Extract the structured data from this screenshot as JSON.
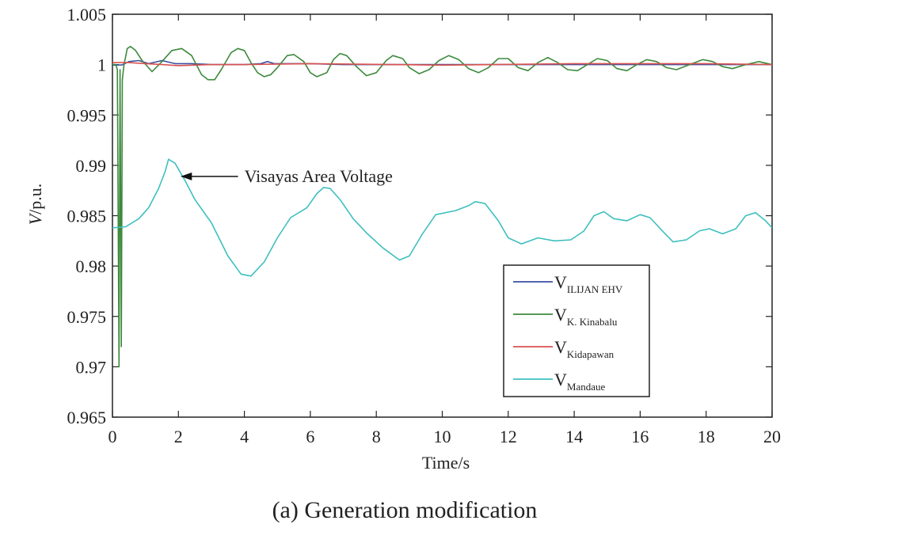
{
  "chart_data": {
    "type": "line",
    "caption": "(a) Generation modification",
    "xlabel": "Time/s",
    "ylabel_italic": "V",
    "ylabel_rest": "/p.u.",
    "xlim": [
      0,
      20
    ],
    "ylim": [
      0.965,
      1.005
    ],
    "xticks": [
      0,
      2,
      4,
      6,
      8,
      10,
      12,
      14,
      16,
      18,
      20
    ],
    "yticks": [
      0.965,
      0.97,
      0.975,
      0.98,
      0.985,
      0.99,
      0.995,
      1,
      1.005
    ],
    "ytick_labels": [
      "0.965",
      "0.97",
      "0.975",
      "0.98",
      "0.985",
      "0.99",
      "0.995",
      "1",
      "1.005"
    ],
    "grid": false,
    "legend_position": "lower-right",
    "annotation": {
      "text": "Visayas Area Voltage",
      "arrow_target": [
        2.0,
        0.9889
      ],
      "text_anchor": [
        4.0,
        0.9889
      ]
    },
    "series": [
      {
        "name": "V",
        "subscript": "ILIJAN EHV",
        "color": "#3c4fa0",
        "points": [
          [
            0,
            0.99995
          ],
          [
            0.3,
            0.99998
          ],
          [
            0.5,
            1.0003
          ],
          [
            0.8,
            1.0004
          ],
          [
            1.1,
            1.0001
          ],
          [
            1.5,
            1.0004
          ],
          [
            1.9,
            1.0001
          ],
          [
            2.4,
            1.0001
          ],
          [
            3.0,
            1.0
          ],
          [
            4.0,
            1.0
          ],
          [
            4.5,
            1.0001
          ],
          [
            4.7,
            1.0003
          ],
          [
            4.9,
            1.0001
          ],
          [
            5.5,
            1.0001
          ],
          [
            6.0,
            1.0001
          ],
          [
            7.0,
            1.0
          ],
          [
            20.0,
            1.0
          ]
        ]
      },
      {
        "name": "V",
        "subscript": "K. Kinabalu",
        "color": "#3d8a3d",
        "points": [
          [
            0,
            1.0
          ],
          [
            0.1,
            1.0
          ],
          [
            0.15,
            0.9995
          ],
          [
            0.2,
            0.97
          ],
          [
            0.23,
            0.9995
          ],
          [
            0.27,
            0.972
          ],
          [
            0.3,
            0.9985
          ],
          [
            0.35,
            1.0
          ],
          [
            0.45,
            1.0016
          ],
          [
            0.55,
            1.0018
          ],
          [
            0.7,
            1.0014
          ],
          [
            0.9,
            1.0004
          ],
          [
            1.2,
            0.9993
          ],
          [
            1.5,
            1.0003
          ],
          [
            1.8,
            1.0014
          ],
          [
            2.1,
            1.0016
          ],
          [
            2.4,
            1.0009
          ],
          [
            2.7,
            0.999
          ],
          [
            2.9,
            0.9985
          ],
          [
            3.1,
            0.9985
          ],
          [
            3.3,
            0.9995
          ],
          [
            3.6,
            1.0012
          ],
          [
            3.8,
            1.0016
          ],
          [
            4.0,
            1.0014
          ],
          [
            4.2,
            1.0002
          ],
          [
            4.4,
            0.9992
          ],
          [
            4.6,
            0.9988
          ],
          [
            4.8,
            0.999
          ],
          [
            5.0,
            0.9997
          ],
          [
            5.3,
            1.0009
          ],
          [
            5.5,
            1.001
          ],
          [
            5.8,
            1.0003
          ],
          [
            6.0,
            0.9992
          ],
          [
            6.2,
            0.9988
          ],
          [
            6.5,
            0.9992
          ],
          [
            6.7,
            1.0005
          ],
          [
            6.9,
            1.0011
          ],
          [
            7.1,
            1.0009
          ],
          [
            7.4,
            0.9998
          ],
          [
            7.7,
            0.9989
          ],
          [
            8.0,
            0.9992
          ],
          [
            8.3,
            1.0004
          ],
          [
            8.5,
            1.0009
          ],
          [
            8.8,
            1.0006
          ],
          [
            9.0,
            0.9997
          ],
          [
            9.3,
            0.9991
          ],
          [
            9.6,
            0.9995
          ],
          [
            9.9,
            1.0004
          ],
          [
            10.2,
            1.0009
          ],
          [
            10.5,
            1.0005
          ],
          [
            10.8,
            0.9996
          ],
          [
            11.1,
            0.9992
          ],
          [
            11.4,
            0.9997
          ],
          [
            11.7,
            1.0006
          ],
          [
            12.0,
            1.0006
          ],
          [
            12.3,
            0.9997
          ],
          [
            12.6,
            0.9994
          ],
          [
            12.9,
            1.0002
          ],
          [
            13.2,
            1.0007
          ],
          [
            13.5,
            1.0002
          ],
          [
            13.8,
            0.9995
          ],
          [
            14.1,
            0.9994
          ],
          [
            14.4,
            1.0
          ],
          [
            14.7,
            1.0006
          ],
          [
            15.0,
            1.0004
          ],
          [
            15.3,
            0.9996
          ],
          [
            15.6,
            0.9994
          ],
          [
            15.9,
            1.0
          ],
          [
            16.2,
            1.0005
          ],
          [
            16.5,
            1.0003
          ],
          [
            16.8,
            0.9997
          ],
          [
            17.1,
            0.9995
          ],
          [
            17.5,
            1.0
          ],
          [
            17.9,
            1.0005
          ],
          [
            18.2,
            1.0003
          ],
          [
            18.5,
            0.9998
          ],
          [
            18.8,
            0.9996
          ],
          [
            19.2,
            1.0
          ],
          [
            19.6,
            1.0003
          ],
          [
            20.0,
            1.0
          ]
        ]
      },
      {
        "name": "V",
        "subscript": "Kidapawan",
        "color": "#d9534f",
        "points": [
          [
            0,
            1.0002
          ],
          [
            0.5,
            1.0002
          ],
          [
            1.0,
            1.0001
          ],
          [
            1.5,
            1.0
          ],
          [
            2.0,
            0.9999
          ],
          [
            3.0,
            1.0
          ],
          [
            4.0,
            1.0
          ],
          [
            6.0,
            1.0001
          ],
          [
            10.0,
            0.99995
          ],
          [
            14.0,
            1.0001
          ],
          [
            18.0,
            1.0001
          ],
          [
            20.0,
            1.0
          ]
        ]
      },
      {
        "name": "V",
        "subscript": "Mandaue",
        "color": "#3fbfbf",
        "points": [
          [
            0,
            0.9838
          ],
          [
            0.4,
            0.9839
          ],
          [
            0.8,
            0.9847
          ],
          [
            1.1,
            0.9858
          ],
          [
            1.4,
            0.9877
          ],
          [
            1.6,
            0.9894
          ],
          [
            1.7,
            0.9906
          ],
          [
            1.9,
            0.9902
          ],
          [
            2.2,
            0.9885
          ],
          [
            2.5,
            0.9866
          ],
          [
            3.0,
            0.9843
          ],
          [
            3.5,
            0.981
          ],
          [
            3.9,
            0.9792
          ],
          [
            4.2,
            0.979
          ],
          [
            4.6,
            0.9804
          ],
          [
            5.0,
            0.9828
          ],
          [
            5.4,
            0.9848
          ],
          [
            5.9,
            0.9858
          ],
          [
            6.2,
            0.9872
          ],
          [
            6.4,
            0.9878
          ],
          [
            6.6,
            0.9877
          ],
          [
            6.9,
            0.9866
          ],
          [
            7.3,
            0.9847
          ],
          [
            7.7,
            0.9833
          ],
          [
            8.2,
            0.9818
          ],
          [
            8.7,
            0.9806
          ],
          [
            9.0,
            0.981
          ],
          [
            9.4,
            0.9832
          ],
          [
            9.8,
            0.9851
          ],
          [
            10.4,
            0.9855
          ],
          [
            10.8,
            0.986
          ],
          [
            11.0,
            0.9864
          ],
          [
            11.3,
            0.9862
          ],
          [
            11.7,
            0.9845
          ],
          [
            12.0,
            0.9828
          ],
          [
            12.4,
            0.9822
          ],
          [
            12.9,
            0.9828
          ],
          [
            13.4,
            0.9825
          ],
          [
            13.9,
            0.9826
          ],
          [
            14.3,
            0.9835
          ],
          [
            14.6,
            0.985
          ],
          [
            14.9,
            0.9854
          ],
          [
            15.2,
            0.9847
          ],
          [
            15.6,
            0.9845
          ],
          [
            16.0,
            0.9851
          ],
          [
            16.3,
            0.9848
          ],
          [
            16.7,
            0.9834
          ],
          [
            17.0,
            0.9824
          ],
          [
            17.4,
            0.9826
          ],
          [
            17.8,
            0.9835
          ],
          [
            18.1,
            0.9837
          ],
          [
            18.5,
            0.9832
          ],
          [
            18.9,
            0.9837
          ],
          [
            19.2,
            0.985
          ],
          [
            19.5,
            0.9853
          ],
          [
            19.8,
            0.9845
          ],
          [
            20.0,
            0.9838
          ]
        ]
      }
    ]
  }
}
